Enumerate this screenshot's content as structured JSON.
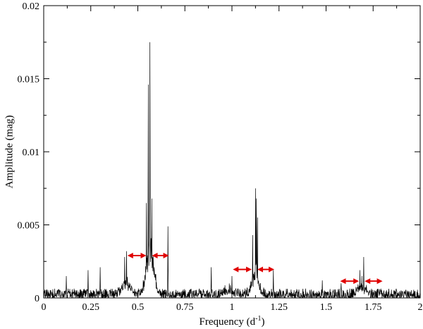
{
  "chart_data": {
    "type": "line",
    "xlabel": "Frequency (d",
    "xlabel_superscript": "-1",
    "xlabel_suffix": ")",
    "ylabel": "Amplitude (mag)",
    "xlim": [
      0,
      2
    ],
    "ylim": [
      0,
      0.02
    ],
    "x_ticks": [
      "0",
      "0.25",
      "0.5",
      "0.75",
      "1",
      "1.25",
      "1.5",
      "1.75",
      "2"
    ],
    "x_tick_values": [
      0,
      0.25,
      0.5,
      0.75,
      1,
      1.25,
      1.5,
      1.75,
      2
    ],
    "y_ticks": [
      "0",
      "0.005",
      "0.01",
      "0.015",
      "0.02"
    ],
    "y_tick_values": [
      0,
      0.005,
      0.01,
      0.015,
      0.02
    ],
    "grid": false,
    "series_color": "#000000",
    "arrow_color": "#e00000",
    "peaks": [
      {
        "x": 0.565,
        "y": 0.0175
      },
      {
        "x": 0.555,
        "y": 0.0146
      },
      {
        "x": 0.545,
        "y": 0.0065
      },
      {
        "x": 0.575,
        "y": 0.0068
      },
      {
        "x": 0.66,
        "y": 0.0049
      },
      {
        "x": 0.44,
        "y": 0.0032
      },
      {
        "x": 0.43,
        "y": 0.0028
      },
      {
        "x": 0.3,
        "y": 0.0021
      },
      {
        "x": 0.235,
        "y": 0.0019
      },
      {
        "x": 0.12,
        "y": 0.0015
      },
      {
        "x": 0.89,
        "y": 0.0021
      },
      {
        "x": 1.0,
        "y": 0.0015
      },
      {
        "x": 1.125,
        "y": 0.0075
      },
      {
        "x": 1.135,
        "y": 0.0055
      },
      {
        "x": 1.11,
        "y": 0.0043
      },
      {
        "x": 1.13,
        "y": 0.0068
      },
      {
        "x": 1.22,
        "y": 0.0019
      },
      {
        "x": 1.68,
        "y": 0.0019
      },
      {
        "x": 1.7,
        "y": 0.0028
      },
      {
        "x": 1.69,
        "y": 0.0015
      },
      {
        "x": 1.48,
        "y": 0.0012
      },
      {
        "x": 1.58,
        "y": 0.001
      }
    ],
    "humps": [
      {
        "x": 0.565,
        "height": 0.0032,
        "width": 0.03
      },
      {
        "x": 1.125,
        "height": 0.0014,
        "width": 0.025
      },
      {
        "x": 1.69,
        "height": 0.0006,
        "width": 0.03
      },
      {
        "x": 0.44,
        "height": 0.0008,
        "width": 0.03
      },
      {
        "x": 0.98,
        "height": 0.0004,
        "width": 0.03
      }
    ],
    "noise_level": 0.0004,
    "arrows": [
      {
        "x1": 0.445,
        "x2": 0.545,
        "y": 0.0029
      },
      {
        "x1": 0.575,
        "x2": 0.665,
        "y": 0.0029
      },
      {
        "x1": 1.005,
        "x2": 1.105,
        "y": 0.00195
      },
      {
        "x1": 1.135,
        "x2": 1.225,
        "y": 0.00195
      },
      {
        "x1": 1.575,
        "x2": 1.675,
        "y": 0.00115
      },
      {
        "x1": 1.705,
        "x2": 1.8,
        "y": 0.00115
      }
    ]
  }
}
